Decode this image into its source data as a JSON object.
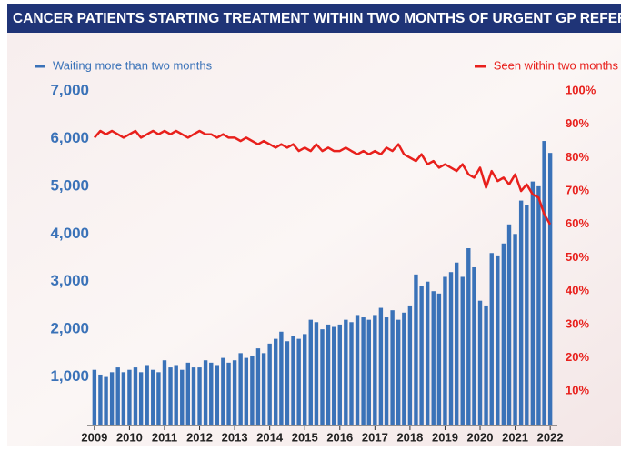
{
  "chart_data": {
    "type": "bar",
    "title": "CANCER PATIENTS STARTING TREATMENT WITHIN TWO MONTHS OF URGENT GP REFERRAL",
    "x": [
      2009,
      2009.17,
      2009.33,
      2009.5,
      2009.67,
      2009.83,
      2010,
      2010.17,
      2010.33,
      2010.5,
      2010.67,
      2010.83,
      2011,
      2011.17,
      2011.33,
      2011.5,
      2011.67,
      2011.83,
      2012,
      2012.17,
      2012.33,
      2012.5,
      2012.67,
      2012.83,
      2013,
      2013.17,
      2013.33,
      2013.5,
      2013.67,
      2013.83,
      2014,
      2014.17,
      2014.33,
      2014.5,
      2014.67,
      2014.83,
      2015,
      2015.17,
      2015.33,
      2015.5,
      2015.67,
      2015.83,
      2016,
      2016.17,
      2016.33,
      2016.5,
      2016.67,
      2016.83,
      2017,
      2017.17,
      2017.33,
      2017.5,
      2017.67,
      2017.83,
      2018,
      2018.17,
      2018.33,
      2018.5,
      2018.67,
      2018.83,
      2019,
      2019.17,
      2019.33,
      2019.5,
      2019.67,
      2019.83,
      2020,
      2020.17,
      2020.33,
      2020.5,
      2020.67,
      2020.83,
      2021,
      2021.17,
      2021.33,
      2021.5,
      2021.67,
      2021.83,
      2022
    ],
    "series": [
      {
        "name": "Waiting more than two months",
        "color": "#3a72b8",
        "type": "bar",
        "values": [
          1150,
          1050,
          1000,
          1100,
          1200,
          1100,
          1150,
          1200,
          1100,
          1250,
          1150,
          1100,
          1350,
          1200,
          1250,
          1150,
          1300,
          1200,
          1200,
          1350,
          1300,
          1250,
          1400,
          1300,
          1350,
          1500,
          1400,
          1450,
          1600,
          1500,
          1700,
          1800,
          1950,
          1750,
          1850,
          1800,
          1900,
          2200,
          2150,
          2000,
          2100,
          2050,
          2100,
          2200,
          2150,
          2300,
          2250,
          2200,
          2300,
          2450,
          2250,
          2400,
          2200,
          2350,
          2500,
          3150,
          2900,
          3000,
          2800,
          2750,
          3100,
          3200,
          3400,
          3100,
          3700,
          3300,
          2600,
          2500,
          3600,
          3550,
          3800,
          4200,
          4000,
          4700,
          4600,
          5100,
          5000,
          5950,
          5700
        ]
      },
      {
        "name": "Seen within two months",
        "color": "#e8201c",
        "type": "line",
        "axis": "y2",
        "values": [
          86,
          88,
          87,
          88,
          87,
          86,
          87,
          88,
          86,
          87,
          88,
          87,
          88,
          87,
          88,
          87,
          86,
          87,
          88,
          87,
          87,
          86,
          87,
          86,
          86,
          85,
          86,
          85,
          84,
          85,
          84,
          83,
          84,
          83,
          84,
          82,
          83,
          82,
          84,
          82,
          83,
          82,
          82,
          83,
          82,
          81,
          82,
          81,
          82,
          81,
          83,
          82,
          84,
          81,
          80,
          79,
          81,
          78,
          79,
          77,
          78,
          77,
          76,
          78,
          75,
          74,
          77,
          71,
          76,
          73,
          74,
          72,
          75,
          70,
          72,
          69,
          68,
          63,
          60
        ]
      }
    ],
    "xlim": [
      2008.9,
      2022.1
    ],
    "xticks": [
      2009,
      2010,
      2011,
      2012,
      2013,
      2014,
      2015,
      2016,
      2017,
      2018,
      2019,
      2020,
      2021,
      2022
    ],
    "ylim": [
      0,
      7000
    ],
    "yticks": [
      {
        "value": 1000,
        "label": "1,000"
      },
      {
        "value": 2000,
        "label": "2,000"
      },
      {
        "value": 3000,
        "label": "3,000"
      },
      {
        "value": 4000,
        "label": "4,000"
      },
      {
        "value": 5000,
        "label": "5,000"
      },
      {
        "value": 6000,
        "label": "6,000"
      },
      {
        "value": 7000,
        "label": "7,000"
      }
    ],
    "y2lim": [
      0,
      100
    ],
    "y2ticks": [
      {
        "value": 10,
        "label": "10%"
      },
      {
        "value": 20,
        "label": "20%"
      },
      {
        "value": 30,
        "label": "30%"
      },
      {
        "value": 40,
        "label": "40%"
      },
      {
        "value": 50,
        "label": "50%"
      },
      {
        "value": 60,
        "label": "60%"
      },
      {
        "value": 70,
        "label": "70%"
      },
      {
        "value": 80,
        "label": "80%"
      },
      {
        "value": 90,
        "label": "90%"
      },
      {
        "value": 100,
        "label": "100%"
      }
    ]
  }
}
